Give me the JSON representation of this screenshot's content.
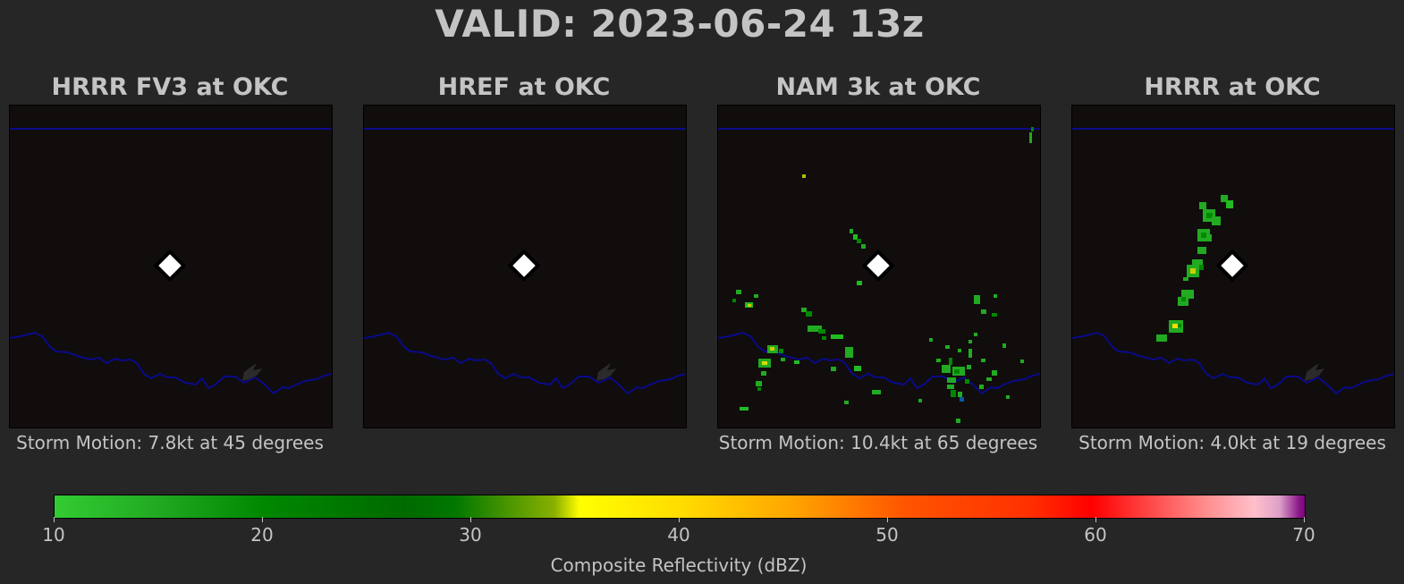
{
  "title": "VALID: 2023-06-24 13z",
  "panels": [
    {
      "title": "HRRR FV3 at OKC",
      "storm_motion": "Storm Motion: 7.8kt at 45 degrees"
    },
    {
      "title": "HREF at OKC",
      "storm_motion": ""
    },
    {
      "title": "NAM 3k at OKC",
      "storm_motion": "Storm Motion: 10.4kt at 65 degrees"
    },
    {
      "title": "HRRR at OKC",
      "storm_motion": "Storm Motion: 4.0kt at 19 degrees"
    }
  ],
  "colorbar": {
    "label": "Composite Reflectivity (dBZ)",
    "min": 10,
    "max": 70,
    "ticks": [
      "10",
      "20",
      "30",
      "40",
      "50",
      "60",
      "70"
    ]
  },
  "colors": {
    "background": "#262626",
    "map_background": "#100d0c",
    "border_line": "#0a0a8a",
    "text": "#c4c4c4",
    "station_marker": "#ffffff"
  },
  "icons": {
    "station": "diamond-marker-icon"
  }
}
